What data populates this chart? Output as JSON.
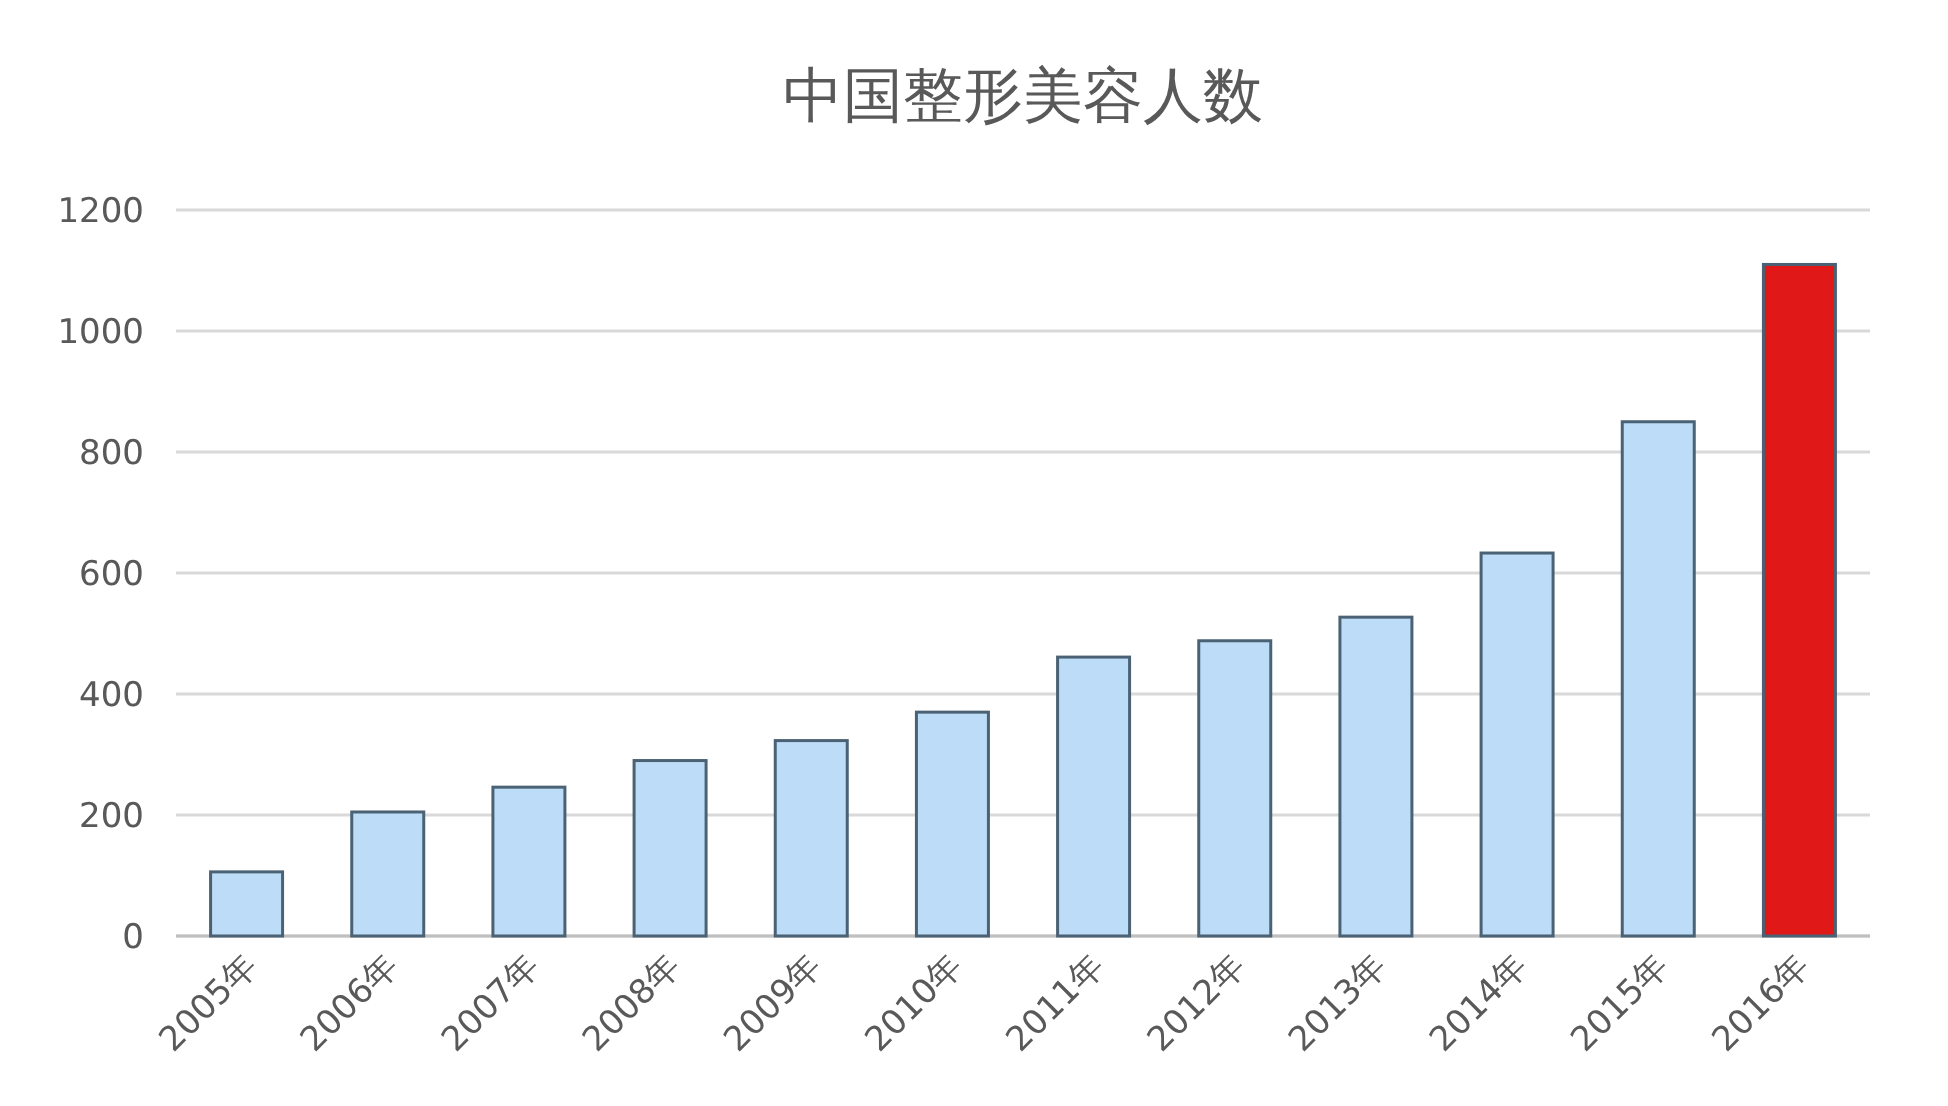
{
  "chart_data": {
    "type": "bar",
    "title": "中国整形美容人数",
    "categories": [
      "2005年",
      "2006年",
      "2007年",
      "2008年",
      "2009年",
      "2010年",
      "2011年",
      "2012年",
      "2013年",
      "2014年",
      "2015年",
      "2016年"
    ],
    "values": [
      106,
      205,
      246,
      290,
      323,
      370,
      461,
      488,
      527,
      633,
      850,
      1110
    ],
    "colors": [
      "#bcdcf8",
      "#bcdcf8",
      "#bcdcf8",
      "#bcdcf8",
      "#bcdcf8",
      "#bcdcf8",
      "#bcdcf8",
      "#bcdcf8",
      "#bcdcf8",
      "#bcdcf8",
      "#bcdcf8",
      "#e01818"
    ],
    "ylim": [
      0,
      1200
    ],
    "yticks": [
      0,
      200,
      400,
      600,
      800,
      1000,
      1200
    ],
    "grid": "y"
  }
}
